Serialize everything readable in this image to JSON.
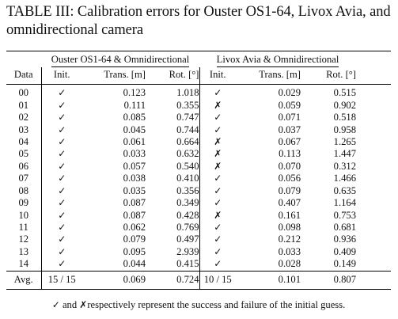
{
  "caption": "TABLE III: Calibration errors for Ouster OS1-64, Livox Avia, and omnidirectional camera",
  "table": {
    "group_headers": [
      "Ouster OS1-64 & Omnidirectional",
      "Livox Avia & Omnidirectional"
    ],
    "columns": {
      "data": "Data",
      "init": "Init.",
      "trans": "Trans. [m]",
      "rot": "Rot. [°]"
    },
    "symbols": {
      "success": "✓",
      "failure": "✗"
    },
    "rows": [
      {
        "data": "00",
        "o_init": "✓",
        "o_trans": "0.123",
        "o_rot": "1.018",
        "l_init": "✓",
        "l_trans": "0.029",
        "l_rot": "0.515"
      },
      {
        "data": "01",
        "o_init": "✓",
        "o_trans": "0.111",
        "o_rot": "0.355",
        "l_init": "✗",
        "l_trans": "0.059",
        "l_rot": "0.902"
      },
      {
        "data": "02",
        "o_init": "✓",
        "o_trans": "0.085",
        "o_rot": "0.747",
        "l_init": "✓",
        "l_trans": "0.071",
        "l_rot": "0.518"
      },
      {
        "data": "03",
        "o_init": "✓",
        "o_trans": "0.045",
        "o_rot": "0.744",
        "l_init": "✓",
        "l_trans": "0.037",
        "l_rot": "0.958"
      },
      {
        "data": "04",
        "o_init": "✓",
        "o_trans": "0.061",
        "o_rot": "0.664",
        "l_init": "✗",
        "l_trans": "0.067",
        "l_rot": "1.265"
      },
      {
        "data": "05",
        "o_init": "✓",
        "o_trans": "0.033",
        "o_rot": "0.632",
        "l_init": "✗",
        "l_trans": "0.113",
        "l_rot": "1.447"
      },
      {
        "data": "06",
        "o_init": "✓",
        "o_trans": "0.057",
        "o_rot": "0.540",
        "l_init": "✗",
        "l_trans": "0.070",
        "l_rot": "0.312"
      },
      {
        "data": "07",
        "o_init": "✓",
        "o_trans": "0.038",
        "o_rot": "0.410",
        "l_init": "✓",
        "l_trans": "0.056",
        "l_rot": "1.466"
      },
      {
        "data": "08",
        "o_init": "✓",
        "o_trans": "0.035",
        "o_rot": "0.356",
        "l_init": "✓",
        "l_trans": "0.079",
        "l_rot": "0.635"
      },
      {
        "data": "09",
        "o_init": "✓",
        "o_trans": "0.087",
        "o_rot": "0.349",
        "l_init": "✓",
        "l_trans": "0.407",
        "l_rot": "1.164"
      },
      {
        "data": "10",
        "o_init": "✓",
        "o_trans": "0.087",
        "o_rot": "0.428",
        "l_init": "✗",
        "l_trans": "0.161",
        "l_rot": "0.753"
      },
      {
        "data": "11",
        "o_init": "✓",
        "o_trans": "0.062",
        "o_rot": "0.769",
        "l_init": "✓",
        "l_trans": "0.098",
        "l_rot": "0.681"
      },
      {
        "data": "12",
        "o_init": "✓",
        "o_trans": "0.079",
        "o_rot": "0.497",
        "l_init": "✓",
        "l_trans": "0.212",
        "l_rot": "0.936"
      },
      {
        "data": "13",
        "o_init": "✓",
        "o_trans": "0.095",
        "o_rot": "2.939",
        "l_init": "✓",
        "l_trans": "0.033",
        "l_rot": "0.409"
      },
      {
        "data": "14",
        "o_init": "✓",
        "o_trans": "0.044",
        "o_rot": "0.415",
        "l_init": "✓",
        "l_trans": "0.028",
        "l_rot": "0.149"
      }
    ],
    "average": {
      "label": "Avg.",
      "o_init": "15 / 15",
      "o_trans": "0.069",
      "o_rot": "0.724",
      "l_init": "10 / 15",
      "l_trans": "0.101",
      "l_rot": "0.807"
    }
  },
  "footnote": {
    "check": "✓",
    "text_a": " and ",
    "cross": "✗",
    "text_b": "respectively represent the success and failure of the initial guess."
  }
}
